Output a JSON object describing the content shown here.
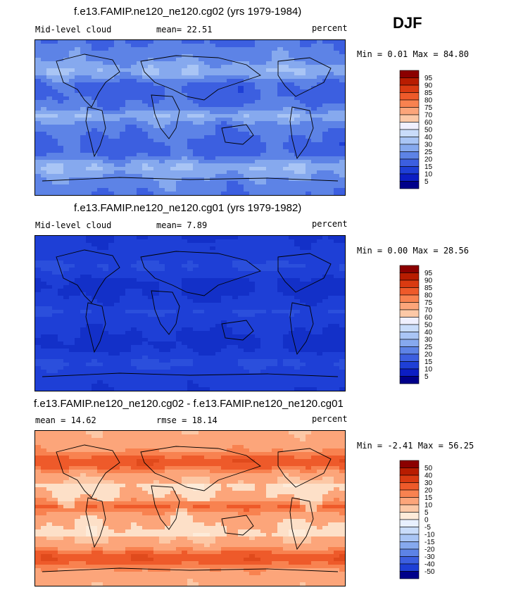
{
  "season": "DJF",
  "panels": [
    {
      "title": "f.e13.FAMIP.ne120_ne120.cg02 (yrs 1979-1984)",
      "left_label": "Mid-level cloud",
      "stat1": "mean=  22.51",
      "stat2": "",
      "units": "percent",
      "minmax": "Min =   0.01 Max =  84.80",
      "levels": [
        "95",
        "90",
        "85",
        "80",
        "75",
        "70",
        "60",
        "50",
        "40",
        "30",
        "25",
        "20",
        "15",
        "10",
        "5"
      ],
      "colors": [
        "#8b0000",
        "#b81c00",
        "#d93a11",
        "#ee5a2a",
        "#f88250",
        "#fca57a",
        "#fcc8a6",
        "#f0f0ff",
        "#c9dcfa",
        "#a9c5f5",
        "#86a9ee",
        "#5d83e6",
        "#3c5fe0",
        "#1e3fd6",
        "#0c1ec4",
        "#00008a"
      ],
      "map_palette": [
        "#0b1aa6",
        "#1e3fd6",
        "#3c5fe0",
        "#5d83e6",
        "#86a9ee",
        "#a9c5f5",
        "#c9dcfa",
        "#f3f3ff",
        "#fcd8bf",
        "#f8a27a",
        "#e85a30"
      ],
      "map_base": 2.6,
      "map_amp": 1.0
    },
    {
      "title": "f.e13.FAMIP.ne120_ne120.cg01 (yrs 1979-1982)",
      "left_label": "Mid-level cloud",
      "stat1": "mean=   7.89",
      "stat2": "",
      "units": "percent",
      "minmax": "Min =   0.00 Max =  28.56",
      "levels": [
        "95",
        "90",
        "85",
        "80",
        "75",
        "70",
        "60",
        "50",
        "40",
        "30",
        "25",
        "20",
        "15",
        "10",
        "5"
      ],
      "colors": [
        "#8b0000",
        "#b81c00",
        "#d93a11",
        "#ee5a2a",
        "#f88250",
        "#fca57a",
        "#fcc8a6",
        "#f0f0ff",
        "#c9dcfa",
        "#a9c5f5",
        "#86a9ee",
        "#5d83e6",
        "#3c5fe0",
        "#1e3fd6",
        "#0c1ec4",
        "#00008a"
      ],
      "map_palette": [
        "#0b1aa6",
        "#1330c8",
        "#1e3fd6",
        "#2b4fdc",
        "#3c5fe0",
        "#5d83e6",
        "#86a9ee",
        "#c9dcfa"
      ],
      "map_base": 1.6,
      "map_amp": 0.55
    },
    {
      "title": "f.e13.FAMIP.ne120_ne120.cg02 - f.e13.FAMIP.ne120_ne120.cg01",
      "left_label": "mean =   14.62",
      "stat1": "rmse =   18.14",
      "stat2": "",
      "units": "percent",
      "minmax": "Min =  -2.41 Max =  56.25",
      "levels": [
        "50",
        "40",
        "30",
        "20",
        "15",
        "10",
        "5",
        "0",
        "-5",
        "-10",
        "-15",
        "-20",
        "-30",
        "-40",
        "-50"
      ],
      "colors": [
        "#8b0000",
        "#b81c00",
        "#d93a11",
        "#ee5a2a",
        "#f88250",
        "#fca57a",
        "#fcc8a6",
        "#fdebd9",
        "#e8f0ff",
        "#c9dcfa",
        "#a9c5f5",
        "#86a9ee",
        "#5d83e6",
        "#3c5fe0",
        "#1e3fd6",
        "#00008a"
      ],
      "map_palette": [
        "#fdebd9",
        "#fde0c8",
        "#fcc8a6",
        "#fca57a",
        "#f88250",
        "#ee5a2a",
        "#e04a1c"
      ],
      "map_base": 2.8,
      "map_amp": 0.9
    }
  ],
  "chart_data": [
    {
      "type": "heatmap",
      "title": "f.e13.FAMIP.ne120_ne120.cg02 (yrs 1979-1984)",
      "variable": "Mid-level cloud",
      "units": "percent",
      "mean": 22.51,
      "min": 0.01,
      "max": 84.8,
      "contour_levels": [
        5,
        10,
        15,
        20,
        25,
        30,
        40,
        50,
        60,
        70,
        75,
        80,
        85,
        90,
        95
      ]
    },
    {
      "type": "heatmap",
      "title": "f.e13.FAMIP.ne120_ne120.cg01 (yrs 1979-1982)",
      "variable": "Mid-level cloud",
      "units": "percent",
      "mean": 7.89,
      "min": 0.0,
      "max": 28.56,
      "contour_levels": [
        5,
        10,
        15,
        20,
        25,
        30,
        40,
        50,
        60,
        70,
        75,
        80,
        85,
        90,
        95
      ]
    },
    {
      "type": "heatmap",
      "title": "f.e13.FAMIP.ne120_ne120.cg02 - f.e13.FAMIP.ne120_ne120.cg01",
      "units": "percent",
      "mean": 14.62,
      "rmse": 18.14,
      "min": -2.41,
      "max": 56.25,
      "contour_levels": [
        -50,
        -40,
        -30,
        -20,
        -15,
        -10,
        -5,
        0,
        5,
        10,
        15,
        20,
        30,
        40,
        50
      ]
    }
  ]
}
